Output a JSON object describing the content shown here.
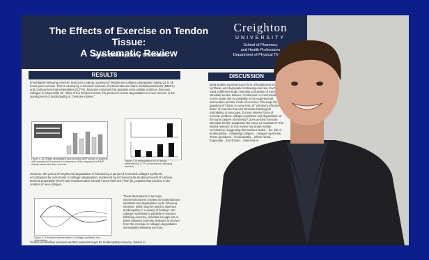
{
  "poster": {
    "title_line1": "The Effects of Exercise on Tendon Tissue:",
    "title_line2": "A Systematic Review",
    "authors": "James Beasley, Terry Grindstaff",
    "logo": {
      "brand": "Creighton",
      "university": "UNIVERSITY",
      "school_line1": "School of Pharmacy",
      "school_line2": "and Health Professions",
      "school_line3": "Department of Physical Therapy"
    },
    "results": {
      "header": "RESULTS",
      "para1": "Immediately following exercise, tenocytes undergo a period of heightened collagen degradation lasting 24 to 36 hours post exercise. This is caused by a transient increase of intra-tendinous matrix metalloproteinases (MMP's) and Carboxy-terminal telopeptides (ICTPs), bioactive enzymes that degrade extra cellular matrices. Because collagen is responsible for ~86% of the Tendon's mass, this period of excess degradation is a real concern in the development of tendinopathy or \"overuse injuries.\"",
      "caption1": "Figure 1. A) Gelatin zymography gels showing MMP activity in subjects with exercised (E) tendons in comparison of the magnitude of MMP activity before and after exercise.",
      "caption2": "Figure 2. A) peritendinous PICP and B) peritendinous ICTP concentrations following exercise.",
      "para2": "However, this period of heightened degradation is followed by a period of increased collagen synthesis accompanied by a decrease in collagen degradation, evidenced by increased intra-tendinous levels of carboxy terminal propeptide (PICP) and Transformative Growth Factor beta one (TGF-β), peptides that function in the creation of new collagen.",
      "para4": "These fluctuations in tenocyte microenvironment creates an intratendinous synthesis and degradation cycle following exercise, which may be used to minimize tendinopathy in a variety of settings. Net collagen synthesis is possible in tendons following exercise, provided enough rest is taken between exercise sessions to recover from the increase in collagen degradation immediately following exercise.",
      "caption3": "Figure 3. Schematic representation of collagen synthesis and degradation.",
      "para3": "Tendon metabolism presents another potential target for tendinopathy recovery. Similar to"
    },
    "discussion": {
      "header": "DISCUSSION",
      "text": "Most studies reported some form of heightened tendon synthesis and degradation following exercise. Each study used a different mode, intensity or duration of exercise to stimulate tendon tissues. Consensus or commonality can not be made due to variability in the experimental intervention and the mode of exercise. This begs the question of if there is some form of \"minimum effective dose\" of exercise that can stimulate histological remodeling in tenocytes. Do less intense forms of exercise produce collagen synthesis and degradation at the same degree of intensity? Does aerobic exercise stimulate tendon adaptation the same as resistance? The limited research in this review has drawn similar conclusions, suggesting that nutrient intake... the risk of tendinopathy... mitigating collagen... collagen synthesis. These questions... tendinopathy... inform rehab... Especially... that should... intervention."
    }
  },
  "colors": {
    "frame": "#0c1e8c",
    "poster_header": "#1e2a4c",
    "jacket": "#1f1f24",
    "shirt": "#2a2e3a",
    "skin": "#d9a58c",
    "hair": "#3a2416"
  },
  "chart_bars_1": [
    0.3,
    0.75,
    0.55,
    0.8,
    0.6,
    0.7
  ],
  "chart_bars_2": [
    0.25,
    0.2,
    0.45,
    0.5
  ]
}
